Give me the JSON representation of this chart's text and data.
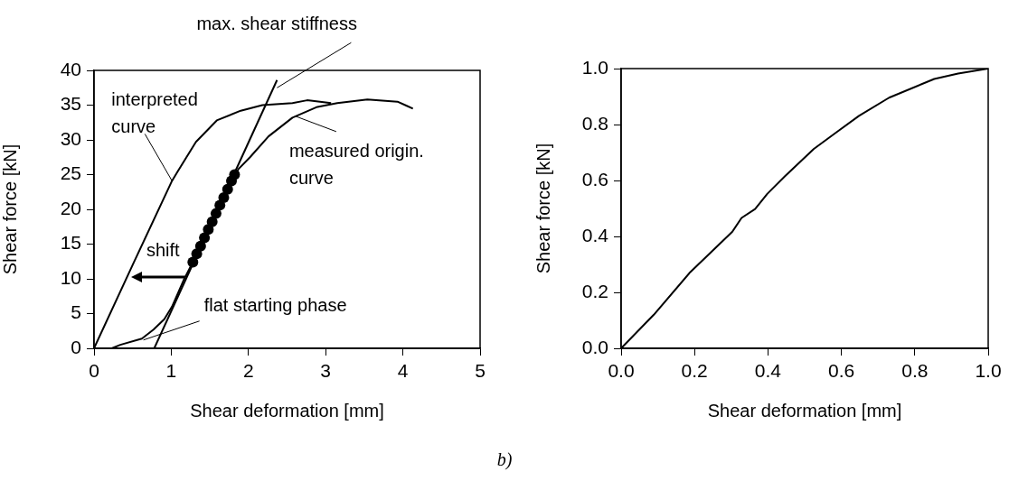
{
  "chart_data": [
    {
      "type": "line",
      "xlabel": "Shear deformation [mm]",
      "ylabel": "Shear force [kN]",
      "xlim": [
        0,
        5
      ],
      "xticks": [
        0,
        1,
        2,
        3,
        4,
        5
      ],
      "ylim": [
        0,
        40
      ],
      "yticks": [
        0,
        5,
        10,
        15,
        20,
        25,
        30,
        35,
        40
      ],
      "grid": false,
      "legend": false,
      "marker": "none",
      "series": [
        {
          "color": "#000000",
          "x": [
            0,
            0.5,
            1.01,
            1.08,
            1.32,
            1.59,
            1.9,
            2.18,
            2.57,
            2.76,
            3.07
          ],
          "values": [
            0,
            12,
            24.1,
            25.4,
            29.7,
            32.8,
            34.2,
            35.0,
            35.3,
            35.7,
            35.3
          ]
        },
        {
          "color": "#000000",
          "x": [
            0.23,
            0.34,
            0.62,
            0.77,
            0.91,
            1.01,
            1.16,
            1.28,
            1.45,
            1.6,
            1.75,
            1.87,
            2.02,
            2.26,
            2.57,
            2.88,
            3.15,
            3.54,
            3.93,
            4.05,
            4.13
          ],
          "values": [
            0,
            0.5,
            1.4,
            2.7,
            4.2,
            6.0,
            9.8,
            12.4,
            16,
            19.5,
            23,
            25.8,
            27.5,
            30.5,
            33.2,
            34.7,
            35.3,
            35.8,
            35.5,
            34.9,
            34.5
          ]
        },
        {
          "color": "#000000",
          "x": [
            0.78,
            2.37
          ],
          "values": [
            0,
            38.6
          ]
        },
        {
          "type": "scatter",
          "color": "#000000",
          "marker": "circle",
          "x": [
            1.28,
            1.33,
            1.38,
            1.43,
            1.48,
            1.53,
            1.58,
            1.63,
            1.68,
            1.73,
            1.78,
            1.82
          ],
          "values": [
            12.4,
            13.6,
            14.7,
            15.9,
            17.1,
            18.2,
            19.4,
            20.6,
            21.7,
            22.9,
            24.1,
            25.0
          ]
        }
      ],
      "annotations": [
        {
          "text": "max. shear stiffness",
          "x": 2.37,
          "y": 37.5
        },
        {
          "text": "interpreted curve",
          "x": 1.01,
          "y": 24.1
        },
        {
          "text": "measured origin. curve",
          "x": 2.61,
          "y": 33.4
        },
        "shift",
        {
          "text": "flat starting phase",
          "x": 0.64,
          "y": 1.2
        },
        "b)"
      ]
    },
    {
      "type": "line",
      "xlabel": "Shear deformation [mm]",
      "ylabel": "Shear force [kN]",
      "xlim": [
        0,
        1
      ],
      "xticks": [
        {
          "value": 0,
          "label": "0.0"
        },
        0.2,
        0.4,
        0.6,
        0.8,
        {
          "value": 1,
          "label": "1.0"
        }
      ],
      "ylim": [
        0,
        1
      ],
      "yticks": [
        {
          "value": 0,
          "label": "0.0"
        },
        0.2,
        0.4,
        0.6,
        0.8,
        {
          "value": 1,
          "label": "1.0"
        }
      ],
      "grid": false,
      "legend": false,
      "marker": "none",
      "series": [
        {
          "color": "#000000",
          "x": [
            0,
            0.089,
            0.188,
            0.303,
            0.328,
            0.365,
            0.398,
            0.447,
            0.525,
            0.586,
            0.648,
            0.73,
            0.853,
            0.918,
            1.0
          ],
          "values": [
            0,
            0.12,
            0.272,
            0.417,
            0.466,
            0.498,
            0.552,
            0.616,
            0.713,
            0.772,
            0.831,
            0.896,
            0.963,
            0.982,
            1.0
          ]
        }
      ]
    }
  ]
}
